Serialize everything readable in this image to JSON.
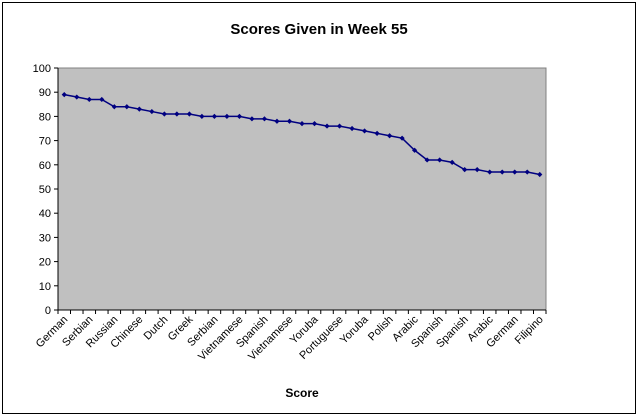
{
  "chart_data": {
    "type": "line",
    "title": "Scores Given in Week 55",
    "xlabel": "Score",
    "ylabel": "",
    "ylim": [
      0,
      100
    ],
    "y_ticks": [
      0,
      10,
      20,
      30,
      40,
      50,
      60,
      70,
      80,
      90,
      100
    ],
    "grid": false,
    "legend": "none",
    "plot_background": "#c0c0c0",
    "line_color": "#000080",
    "categories": [
      "German",
      "",
      "Serbian",
      "",
      "Russian",
      "",
      "Chinese",
      "",
      "Dutch",
      "",
      "Greek",
      "",
      "Serbian",
      "",
      "Vietnamese",
      "",
      "Spanish",
      "",
      "Vietnamese",
      "",
      "Yoruba",
      "",
      "Portuguese",
      "",
      "Yoruba",
      "",
      "Polish",
      "",
      "Arabic",
      "",
      "Spanish",
      "",
      "Spanish",
      "",
      "Arabic",
      "",
      "German",
      "",
      "Filipino"
    ],
    "values": [
      89,
      88,
      87,
      87,
      84,
      84,
      83,
      82,
      81,
      81,
      81,
      80,
      80,
      80,
      80,
      79,
      79,
      78,
      78,
      77,
      77,
      76,
      76,
      75,
      74,
      73,
      72,
      71,
      66,
      62,
      62,
      61,
      58,
      58,
      57,
      57,
      57,
      57,
      56
    ]
  }
}
